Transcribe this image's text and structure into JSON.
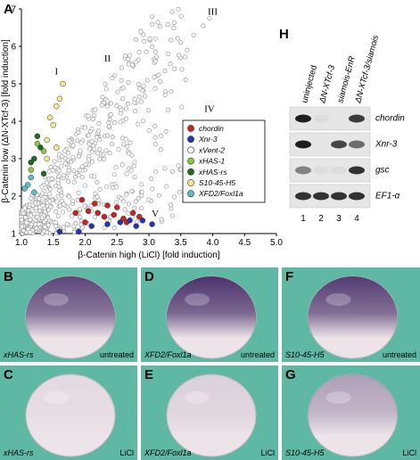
{
  "panel_labels": {
    "A": "A",
    "H": "H",
    "B": "B",
    "C": "C",
    "D": "D",
    "E": "E",
    "F": "F",
    "G": "G"
  },
  "chart_data": {
    "type": "scatter",
    "xlabel": "β-Catenin high (LiCl) [fold induction]",
    "ylabel": "β-Catenin low (ΔN-XTcf-3) [fold induction]",
    "xlim": [
      1.0,
      5.0
    ],
    "ylim": [
      1,
      7
    ],
    "xticks": [
      "1.0",
      "1.5",
      "2.0",
      "2.5",
      "3.0",
      "3.5",
      "4.0",
      "4.5",
      "5.0"
    ],
    "yticks": [
      "1",
      "2",
      "3",
      "4",
      "5",
      "6",
      "7"
    ],
    "region_labels": [
      "I",
      "II",
      "III",
      "IV",
      "V"
    ],
    "legend_position": "right",
    "series": [
      {
        "name": "chordin",
        "color": "#cc2222",
        "values": [
          [
            1.85,
            1.55
          ],
          [
            2.05,
            1.6
          ],
          [
            2.2,
            1.55
          ],
          [
            2.3,
            1.45
          ],
          [
            2.45,
            1.5
          ],
          [
            2.6,
            1.4
          ],
          [
            2.75,
            1.55
          ],
          [
            2.5,
            1.7
          ],
          [
            1.95,
            1.9
          ],
          [
            2.35,
            1.75
          ],
          [
            2.85,
            1.45
          ],
          [
            2.65,
            1.3
          ],
          [
            2.0,
            1.3
          ],
          [
            2.15,
            1.8
          ]
        ]
      },
      {
        "name": "Xnr-3",
        "color": "#2233bb",
        "values": [
          [
            1.6,
            1.05
          ],
          [
            2.1,
            1.2
          ],
          [
            2.35,
            1.25
          ],
          [
            2.55,
            1.3
          ],
          [
            2.7,
            1.35
          ],
          [
            2.9,
            1.35
          ],
          [
            3.05,
            1.25
          ],
          [
            1.9,
            1.05
          ],
          [
            2.8,
            1.2
          ]
        ]
      },
      {
        "name": "xVent-2",
        "color": "#ffffff",
        "values": []
      },
      {
        "name": "xHAS-1",
        "color": "#88c83a",
        "values": [
          [
            1.25,
            3.4
          ],
          [
            1.35,
            3.2
          ],
          [
            1.15,
            2.7
          ]
        ]
      },
      {
        "name": "xHAS-rs",
        "color": "#1f6b1f",
        "values": [
          [
            1.2,
            3.0
          ],
          [
            1.3,
            3.3
          ],
          [
            1.25,
            3.6
          ],
          [
            1.15,
            2.9
          ],
          [
            1.35,
            2.6
          ]
        ]
      },
      {
        "name": "S10-45-H5",
        "color": "#f4e98a",
        "values": [
          [
            1.4,
            3.5
          ],
          [
            1.5,
            3.9
          ],
          [
            1.55,
            4.4
          ],
          [
            1.45,
            4.1
          ],
          [
            1.6,
            4.6
          ],
          [
            1.65,
            5.0
          ],
          [
            1.4,
            3.0
          ],
          [
            1.55,
            3.3
          ]
        ]
      },
      {
        "name": "XFD2/Foxl1a",
        "color": "#5fbfbf",
        "values": [
          [
            1.1,
            2.3
          ],
          [
            1.15,
            2.5
          ],
          [
            1.05,
            2.2
          ],
          [
            1.2,
            2.1
          ]
        ]
      }
    ]
  },
  "blot": {
    "lanes": [
      "uninjected",
      "ΔN-XTcf-3",
      "siamois-EnR",
      "ΔN-XTcf-3/siamois"
    ],
    "lane_numbers": [
      "1",
      "2",
      "3",
      "4"
    ],
    "rows": [
      {
        "gene": "chordin",
        "band_strength": [
          1.0,
          0.05,
          0.0,
          0.85
        ]
      },
      {
        "gene": "Xnr-3",
        "band_strength": [
          1.0,
          0.0,
          0.8,
          0.6
        ]
      },
      {
        "gene": "gsc",
        "band_strength": [
          0.5,
          0.05,
          0.05,
          0.9
        ]
      },
      {
        "gene": "EF1-α",
        "band_strength": [
          0.9,
          0.9,
          0.9,
          0.9
        ]
      }
    ]
  },
  "embryos": [
    {
      "letter": "B",
      "gene": "xHAS-rs",
      "condition": "untreated",
      "stain_level": 0.8
    },
    {
      "letter": "D",
      "gene": "XFD2/Foxl1a",
      "condition": "untreated",
      "stain_level": 0.9
    },
    {
      "letter": "F",
      "gene": "S10-45-H5",
      "condition": "untreated",
      "stain_level": 0.85
    },
    {
      "letter": "C",
      "gene": "xHAS-rs",
      "condition": "LiCl",
      "stain_level": 0.05
    },
    {
      "letter": "E",
      "gene": "XFD2/Foxl1a",
      "condition": "LiCl",
      "stain_level": 0.1
    },
    {
      "letter": "G",
      "gene": "S10-45-H5",
      "condition": "LiCl",
      "stain_level": 0.35
    }
  ],
  "colors": {
    "embryo_background": "#5fb8a4",
    "stain": "#3a1f5e",
    "embryo_body": "#ece4e8"
  }
}
